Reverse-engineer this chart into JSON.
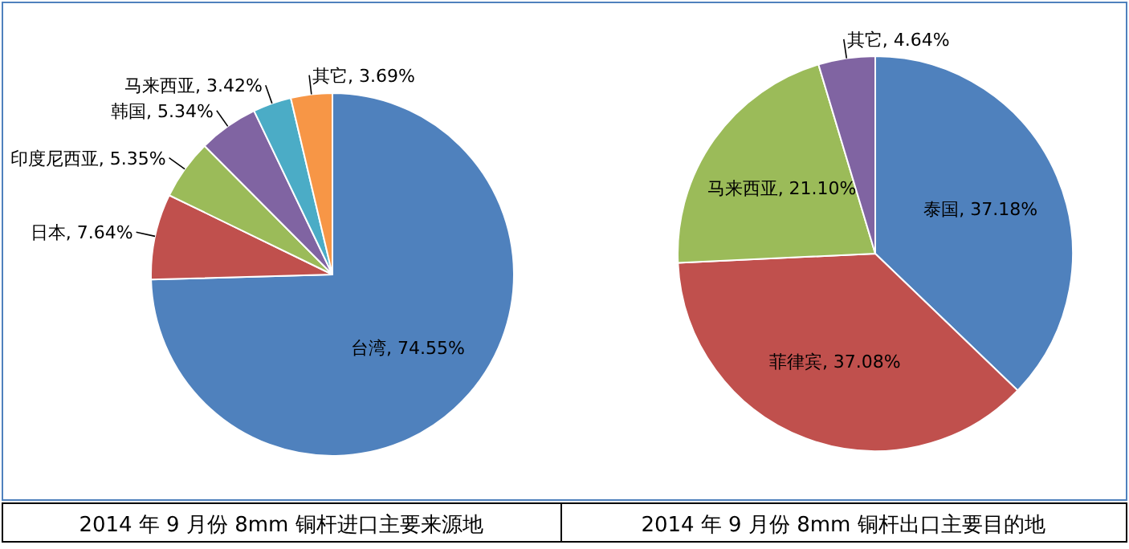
{
  "chart_data": [
    {
      "type": "pie",
      "title": "2014 年 9 月份 8mm 铜杆进口主要来源地",
      "categories": [
        "台湾",
        "日本",
        "印度尼西亚",
        "韩国",
        "马来西亚",
        "其它"
      ],
      "values": [
        74.55,
        7.64,
        5.35,
        5.34,
        3.42,
        3.69
      ],
      "value_labels": [
        "74.55%",
        "7.64%",
        "5.35%",
        "5.34%",
        "3.42%",
        "3.69%"
      ],
      "colors": [
        "#4f81bd",
        "#c0504d",
        "#9bbb59",
        "#8064a2",
        "#4bacc6",
        "#f79646"
      ],
      "legend": false
    },
    {
      "type": "pie",
      "title": "2014 年 9 月份 8mm 铜杆出口主要目的地",
      "categories": [
        "泰国",
        "菲律宾",
        "马来西亚",
        "其它"
      ],
      "values": [
        37.18,
        37.08,
        21.1,
        4.64
      ],
      "value_labels": [
        "37.18%",
        "37.08%",
        "21.10%",
        "4.64%"
      ],
      "colors": [
        "#4f81bd",
        "#c0504d",
        "#9bbb59",
        "#8064a2"
      ],
      "legend": false
    }
  ]
}
